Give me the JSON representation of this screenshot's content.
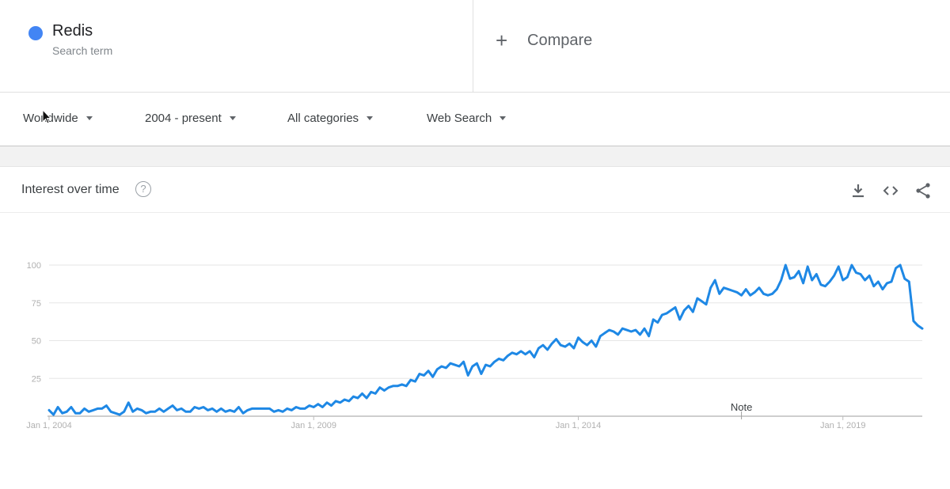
{
  "term": {
    "name": "Redis",
    "subtitle": "Search term",
    "color": "#4285f4"
  },
  "compare": {
    "label": "Compare"
  },
  "filters": [
    {
      "label": "Worldwide"
    },
    {
      "label": "2004 - present"
    },
    {
      "label": "All categories"
    },
    {
      "label": "Web Search"
    }
  ],
  "card": {
    "title": "Interest over time"
  },
  "icons": [
    "download-icon",
    "embed-icon",
    "share-icon",
    "help-icon",
    "plus-icon"
  ],
  "chart_data": {
    "type": "line",
    "title": "Interest over time",
    "xlabel": "",
    "ylabel": "",
    "ylim": [
      0,
      100
    ],
    "y_ticks": [
      "100",
      "75",
      "50",
      "25"
    ],
    "x_tick_labels": [
      "Jan 1, 2004",
      "Jan 1, 2009",
      "Jan 1, 2014",
      "Jan 1, 2019"
    ],
    "annotation": "Note",
    "grid": true,
    "line_color": "#1e88e5",
    "series": [
      {
        "x_start": "2004-01",
        "interval": "month",
        "values": [
          4,
          1,
          6,
          2,
          3,
          6,
          2,
          2,
          5,
          3,
          4,
          5,
          5,
          7,
          3,
          2,
          1,
          3,
          9,
          3,
          5,
          4,
          2,
          3,
          3,
          5,
          3,
          5,
          7,
          4,
          5,
          3,
          3,
          6,
          5,
          6,
          4,
          5,
          3,
          5,
          3,
          4,
          3,
          6,
          2,
          4,
          5,
          5,
          5,
          5,
          5,
          3,
          4,
          3,
          5,
          4,
          6,
          5,
          5,
          7,
          6,
          8,
          6,
          9,
          7,
          10,
          9,
          11,
          10,
          13,
          12,
          15,
          12,
          16,
          15,
          19,
          17,
          19,
          20,
          20,
          21,
          20,
          24,
          23,
          28,
          27,
          30,
          26,
          31,
          33,
          32,
          35,
          34,
          33,
          36,
          27,
          33,
          35,
          28,
          34,
          33,
          36,
          38,
          37,
          40,
          42,
          41,
          43,
          41,
          43,
          39,
          45,
          47,
          44,
          48,
          51,
          47,
          46,
          48,
          45,
          52,
          49,
          47,
          50,
          46,
          53,
          55,
          57,
          56,
          54,
          58,
          57,
          56,
          57,
          54,
          58,
          53,
          64,
          62,
          67,
          68,
          70,
          72,
          64,
          70,
          73,
          69,
          78,
          76,
          74,
          85,
          90,
          81,
          85,
          84,
          83,
          82,
          80,
          84,
          80,
          82,
          85,
          81,
          80,
          81,
          84,
          90,
          100,
          91,
          92,
          96,
          88,
          99,
          90,
          94,
          87,
          86,
          89,
          93,
          99,
          90,
          92,
          100,
          95,
          94,
          90,
          93,
          86,
          89,
          84,
          88,
          89,
          98,
          100,
          91,
          89,
          63,
          60,
          58
        ]
      }
    ]
  }
}
